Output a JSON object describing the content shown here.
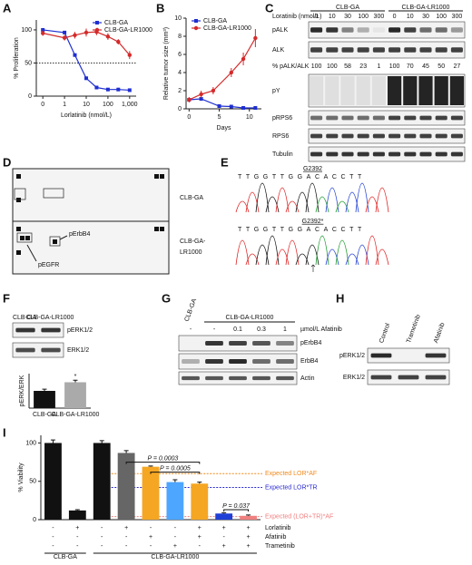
{
  "panel_letters": [
    "A",
    "B",
    "C",
    "D",
    "E",
    "F",
    "G",
    "H",
    "I"
  ],
  "chart_data": [
    {
      "type": "line",
      "xlabel": "Lorlatinib (nmol/L)",
      "ylabel": "% Proliferation",
      "log_x": true,
      "xlim": [
        0.05,
        2000
      ],
      "ylim": [
        0,
        115
      ],
      "xticks": [
        {
          "value": 0.1,
          "label": "0"
        },
        1,
        10,
        100,
        {
          "value": 1000,
          "label": "1,000"
        }
      ],
      "yticks": [
        0,
        50,
        100
      ],
      "reference_line": 50,
      "legend": "upper right",
      "series": [
        {
          "name": "CLB-GA",
          "color": "#1f2fd0",
          "marker": "square",
          "x": [
            0.1,
            1,
            3,
            10,
            30,
            100,
            300,
            1000
          ],
          "values": [
            100,
            96,
            62,
            27,
            13,
            10,
            10,
            9
          ]
        },
        {
          "name": "CLB-GA-LR1000",
          "color": "#d42a2a",
          "marker": "circle",
          "x": [
            0.1,
            1,
            3,
            10,
            30,
            100,
            300,
            1000
          ],
          "values": [
            95,
            88,
            92,
            96,
            97,
            90,
            82,
            62
          ],
          "errors": [
            4,
            4,
            5,
            6,
            5,
            5,
            4,
            6
          ]
        }
      ]
    },
    {
      "type": "line",
      "xlabel": "Days",
      "ylabel": "Relative tumor size (mm³)",
      "xlim": [
        -0.5,
        12
      ],
      "ylim": [
        0,
        10
      ],
      "xticks": [
        0,
        5,
        10
      ],
      "yticks": [
        0,
        2,
        4,
        6,
        8,
        10
      ],
      "legend": "upper left",
      "series": [
        {
          "name": "CLB-GA",
          "color": "#1f2fd0",
          "marker": "square",
          "x": [
            0,
            2,
            5,
            7,
            9,
            11
          ],
          "values": [
            1,
            1.1,
            0.3,
            0.25,
            0.1,
            0.1
          ],
          "errors": [
            0.1,
            0.2,
            0.2,
            0.1,
            0.05,
            0.05
          ]
        },
        {
          "name": "CLB-GA-LR1000",
          "color": "#d42a2a",
          "marker": "circle",
          "x": [
            0,
            2,
            4,
            7,
            9,
            11
          ],
          "values": [
            1,
            1.6,
            2,
            4,
            5.5,
            7.8
          ],
          "errors": [
            0.3,
            0.4,
            0.4,
            0.5,
            0.7,
            1
          ]
        }
      ]
    },
    {
      "type": "bar",
      "ylabel": "pERK/ERK",
      "categories": [
        "CLB-GA",
        "CLB-GA-LR1000"
      ],
      "values": [
        1.0,
        1.5
      ],
      "errors": [
        0.1,
        0.12
      ],
      "colors": [
        "#111111",
        "#aaaaaa"
      ],
      "ylim": [
        0,
        2
      ],
      "annotation": "*"
    },
    {
      "type": "bar",
      "ylabel": "% Viability",
      "values": [
        100,
        12,
        100,
        87,
        69,
        49,
        47,
        8,
        5
      ],
      "errors": [
        4,
        1,
        3,
        3,
        1,
        3,
        2,
        1,
        1
      ],
      "colors": [
        "#111111",
        "#111111",
        "#111111",
        "#666666",
        "#f5a623",
        "#4da6ff",
        "#f5a623",
        "#1f3fd6",
        "#f08080"
      ],
      "ylim": [
        0,
        110
      ],
      "yticks": [
        0,
        50,
        100
      ],
      "reference_lines": [
        {
          "label": "Expected LOR*AF",
          "value": 60,
          "color": "#f08a1c"
        },
        {
          "label": "Expected LOR*TR",
          "value": 42,
          "color": "#2a2ad0"
        },
        {
          "label": "Expected (LOR+TR)*AF",
          "value": 4,
          "color": "#f08080"
        }
      ],
      "comparisons": [
        {
          "label": "P = 0.0003",
          "from": 3,
          "to": 6,
          "value": 75
        },
        {
          "label": "P = 0.0005",
          "from": 4,
          "to": 6,
          "value": 62
        },
        {
          "label": "P = 0.037",
          "from": 7,
          "to": 8,
          "value": 13
        }
      ],
      "treatments": [
        {
          "name": "Lorlatinib",
          "signs": [
            "-",
            "+",
            "-",
            "+",
            "-",
            "-",
            "+",
            "+",
            "+"
          ]
        },
        {
          "name": "Afatinib",
          "signs": [
            "-",
            "-",
            "-",
            "-",
            "+",
            "-",
            "+",
            "-",
            "+"
          ]
        },
        {
          "name": "Trametinib",
          "signs": [
            "-",
            "-",
            "-",
            "-",
            "-",
            "+",
            "-",
            "+",
            "+"
          ]
        }
      ],
      "groups": [
        {
          "label": "CLB-GA",
          "from": 0,
          "to": 1
        },
        {
          "label": "CLB-GA-LR1000",
          "from": 2,
          "to": 8
        }
      ]
    }
  ],
  "blot_c": {
    "title": "Loratinib (nmol/L)",
    "groups": [
      "CLB-GA",
      "CLB-GA-LR1000"
    ],
    "doses": [
      0,
      10,
      30,
      100,
      300,
      0,
      10,
      30,
      100,
      300
    ],
    "ratio_label": "% pALK/ALK",
    "ratios": [
      100,
      100,
      58,
      23,
      1,
      100,
      70,
      45,
      50,
      27
    ],
    "rows": [
      "pALK",
      "ALK",
      "pY",
      "pRPS6",
      "RPS6",
      "Tubulin"
    ]
  },
  "array_d": {
    "top_label": "CLB-GA",
    "bottom_label_lines": [
      "CLB-GA-",
      "LR1000"
    ],
    "spots": [
      "pErbB4",
      "pEGFR"
    ]
  },
  "seq_e": {
    "traces": [
      {
        "label": "G2392",
        "sequence": "TTGGTTGGACACCTT"
      },
      {
        "label": "G2392*",
        "sequence": "TTGGTTGGACACCTT"
      }
    ]
  },
  "blot_f": {
    "columns": [
      "CLB-GA",
      "CLB-GA-LR1000"
    ],
    "rows": [
      "pERK1/2",
      "ERK1/2"
    ]
  },
  "blot_g": {
    "group_single": "CLB-GA",
    "group": "CLB-GA-LR1000",
    "doses": [
      "-",
      "-",
      0.1,
      0.3,
      1
    ],
    "dose_label": "µmol/L Afatinib",
    "rows": [
      "pErbB4",
      "ErbB4",
      "Actin"
    ]
  },
  "blot_h": {
    "columns": [
      "Control",
      "Trametinib",
      "Afatinib"
    ],
    "rows": [
      "pERK1/2",
      "ERK1/2"
    ]
  }
}
